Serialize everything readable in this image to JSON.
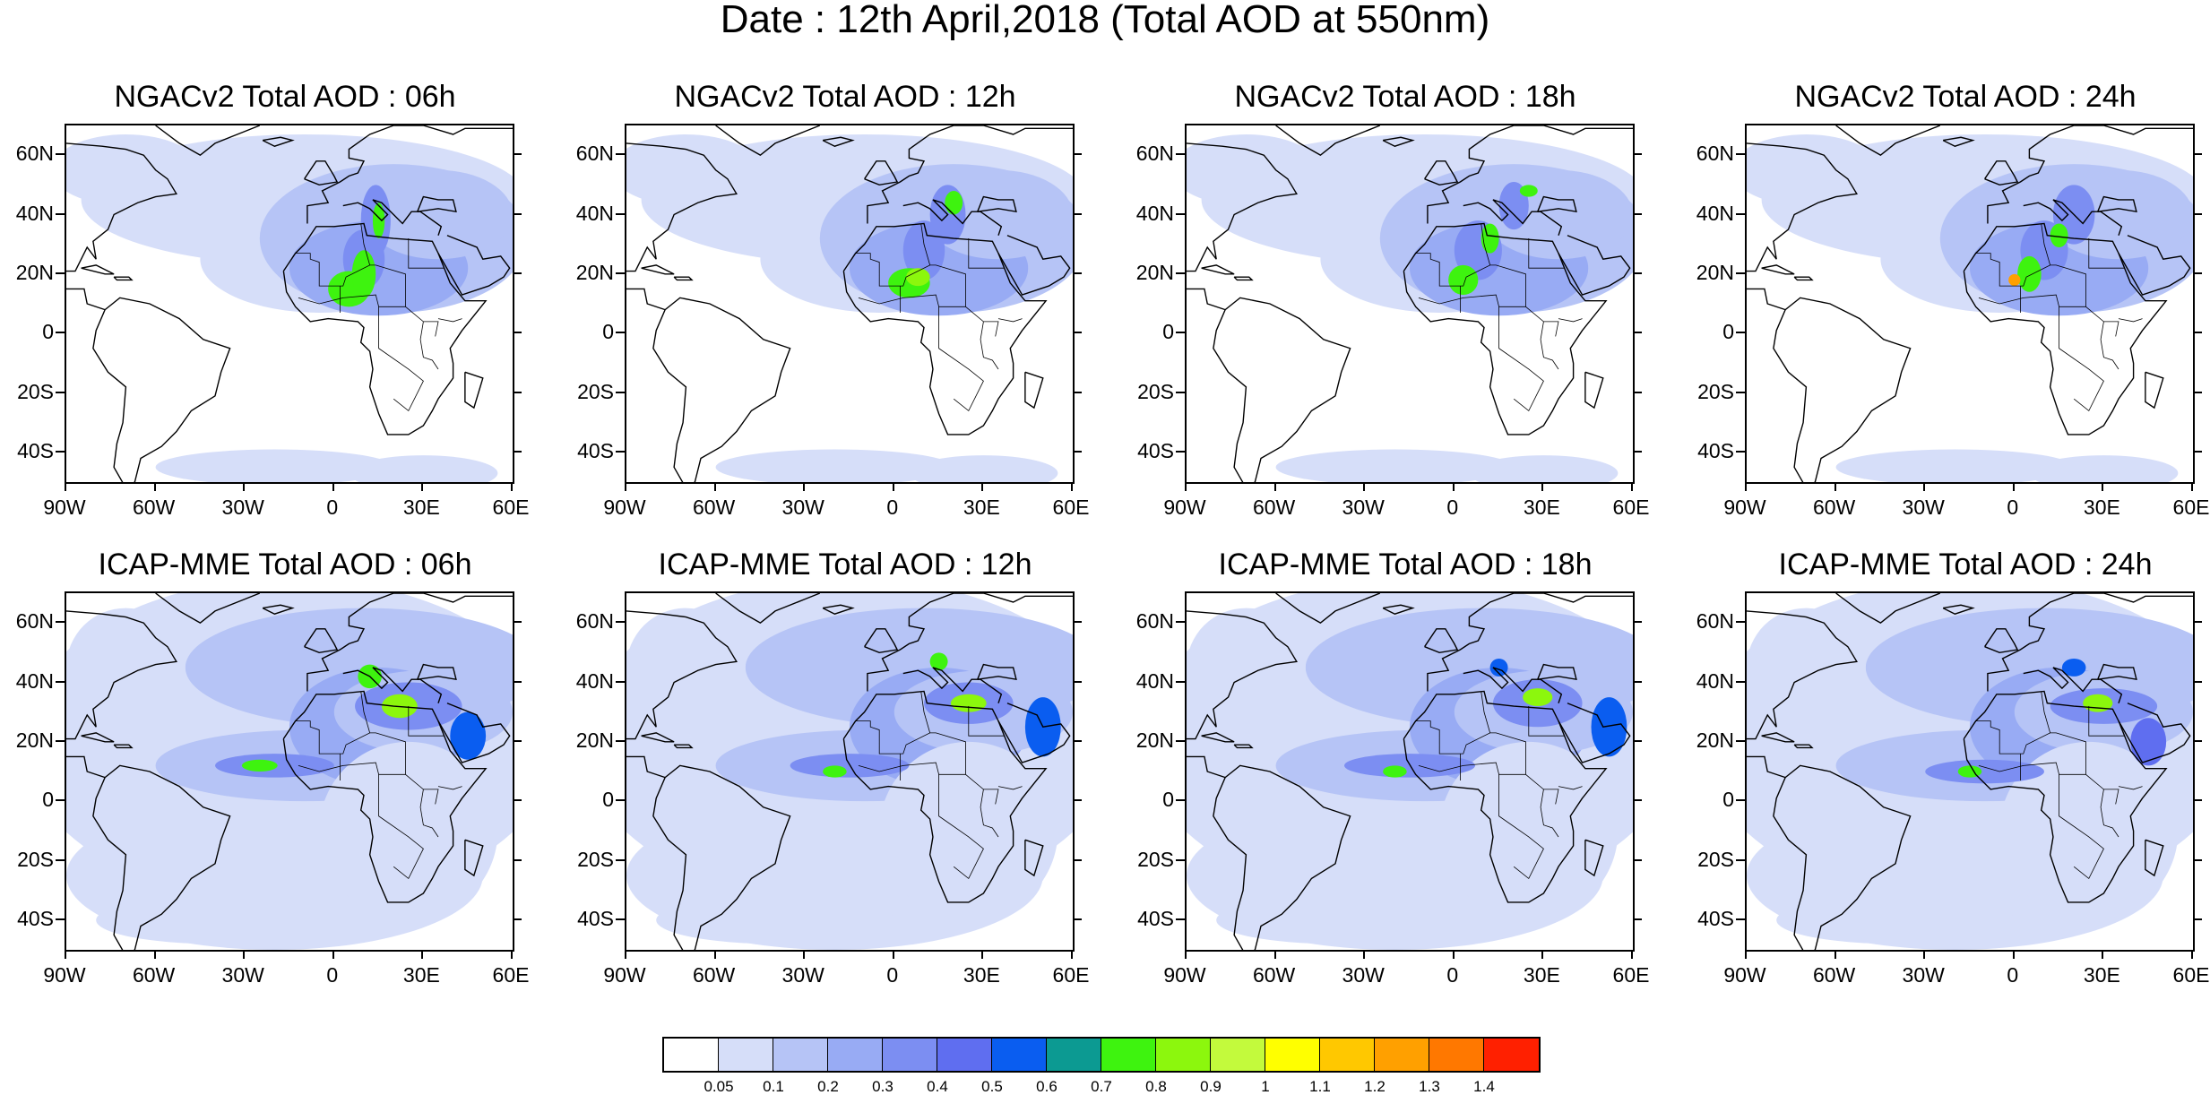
{
  "title": "Date : 12th April,2018 (Total AOD at 550nm)",
  "lat_labels": [
    "60N",
    "40N",
    "20N",
    "0",
    "20S",
    "40S"
  ],
  "lon_labels": [
    "90W",
    "60W",
    "30W",
    "0",
    "30E",
    "60E"
  ],
  "panels": [
    {
      "title": "NGACv2 Total AOD : 06h",
      "model": "NGACv2",
      "hour": "06h"
    },
    {
      "title": "NGACv2 Total AOD : 12h",
      "model": "NGACv2",
      "hour": "12h"
    },
    {
      "title": "NGACv2 Total AOD : 18h",
      "model": "NGACv2",
      "hour": "18h"
    },
    {
      "title": "NGACv2 Total AOD : 24h",
      "model": "NGACv2",
      "hour": "24h"
    },
    {
      "title": "ICAP-MME Total AOD : 06h",
      "model": "ICAP-MME",
      "hour": "06h"
    },
    {
      "title": "ICAP-MME Total AOD : 12h",
      "model": "ICAP-MME",
      "hour": "12h"
    },
    {
      "title": "ICAP-MME Total AOD : 18h",
      "model": "ICAP-MME",
      "hour": "18h"
    },
    {
      "title": "ICAP-MME Total AOD : 24h",
      "model": "ICAP-MME",
      "hour": "24h"
    }
  ],
  "colorbar": {
    "labels": [
      "0.05",
      "0.1",
      "0.2",
      "0.3",
      "0.4",
      "0.5",
      "0.6",
      "0.7",
      "0.8",
      "0.9",
      "1",
      "1.1",
      "1.2",
      "1.3",
      "1.4"
    ],
    "colors": [
      "#ffffff",
      "#d6def9",
      "#b6c4f6",
      "#98abf4",
      "#7c8ef2",
      "#5f6ef0",
      "#0a5df0",
      "#0c9a92",
      "#3ef30f",
      "#8cf70d",
      "#c3fa3c",
      "#ffff00",
      "#ffc800",
      "#ffa000",
      "#ff7800",
      "#ff2000"
    ]
  }
}
